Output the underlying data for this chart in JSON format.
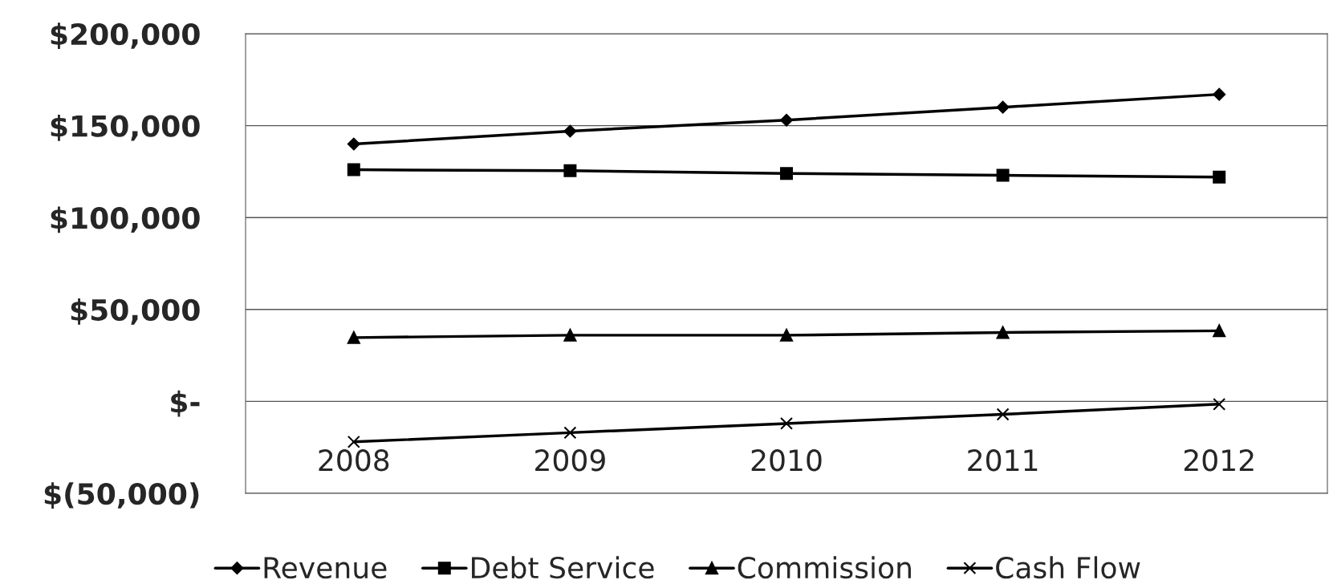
{
  "chart_data": {
    "type": "line",
    "categories": [
      "2008",
      "2009",
      "2010",
      "2011",
      "2012"
    ],
    "series": [
      {
        "name": "Revenue",
        "color": "#000000",
        "marker": "diamond",
        "values": [
          140000,
          147000,
          153000,
          160000,
          167000
        ]
      },
      {
        "name": "Debt Service",
        "color": "#000000",
        "marker": "square",
        "values": [
          126000,
          125500,
          124000,
          123000,
          122000
        ]
      },
      {
        "name": "Commission",
        "color": "#000000",
        "marker": "triangle",
        "values": [
          34700,
          36000,
          36000,
          37500,
          38400
        ]
      },
      {
        "name": "Cash Flow",
        "color": "#000000",
        "marker": "cross",
        "values": [
          -22000,
          -17000,
          -12000,
          -7000,
          -1500
        ]
      }
    ],
    "ylim": [
      -50000,
      200000
    ],
    "yticks": [
      {
        "value": -50000,
        "label": "$(50,000)"
      },
      {
        "value": 0,
        "label": "$-"
      },
      {
        "value": 50000,
        "label": "$50,000"
      },
      {
        "value": 100000,
        "label": "$100,000"
      },
      {
        "value": 150000,
        "label": "$150,000"
      },
      {
        "value": 200000,
        "label": "$200,000"
      }
    ],
    "grid": "y",
    "legend": "bottom",
    "line_style": "solid"
  }
}
